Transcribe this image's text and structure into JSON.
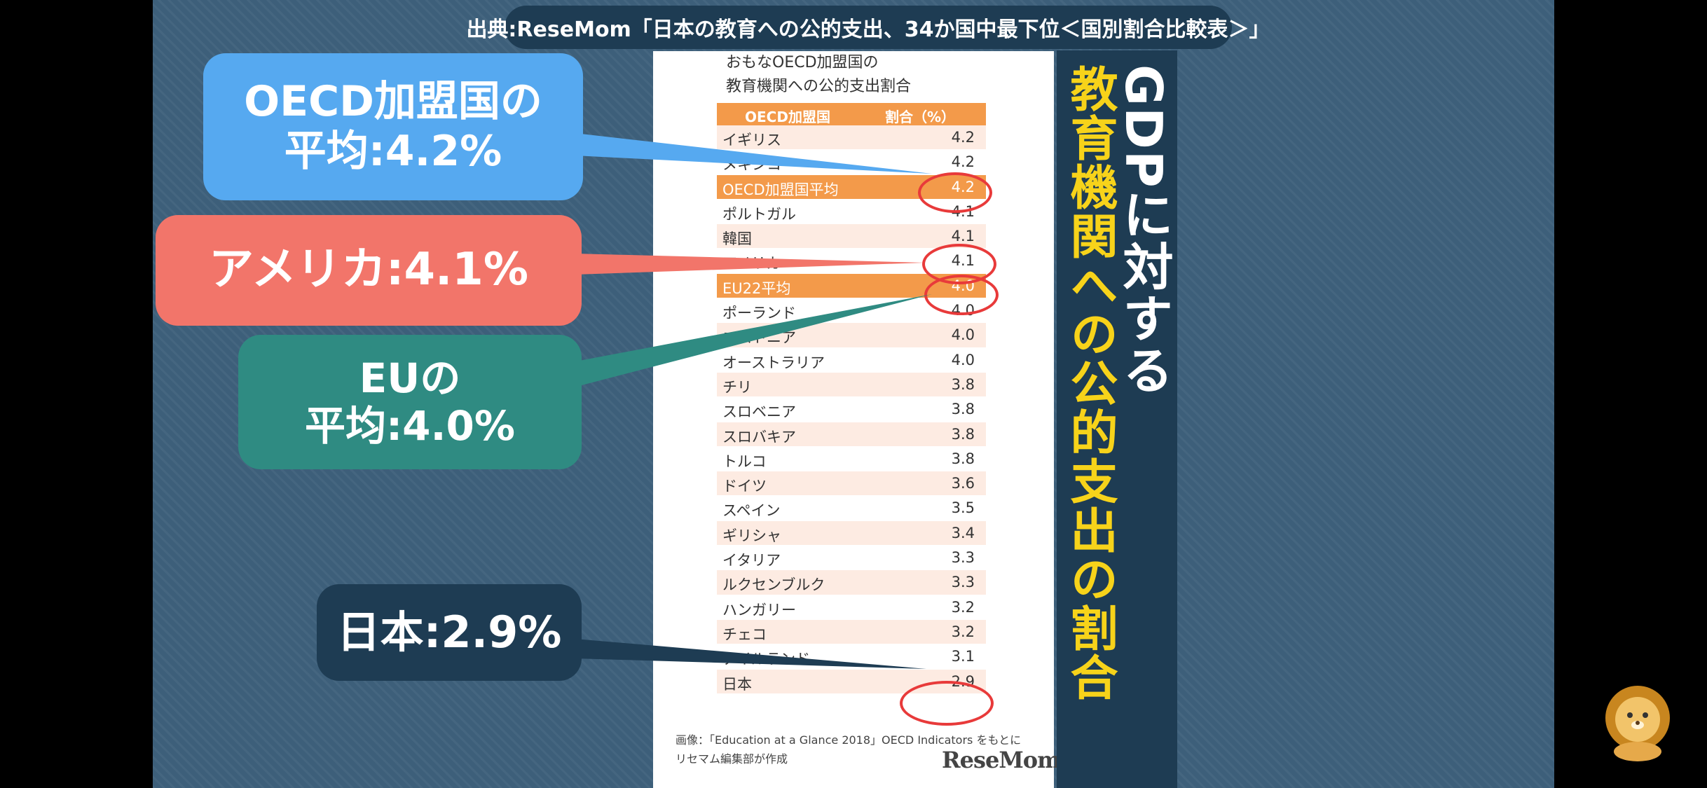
{
  "source_label": "出典:ReseMom「日本の教育への公的支出、34か国中最下位＜国別割合比較表＞」",
  "table": {
    "title_line1": "おもなOECD加盟国の",
    "title_line2": "教育機関への公的支出割合",
    "header_country": "OECD加盟国",
    "header_value": "割合（%）",
    "rows": [
      {
        "country": "イギリス",
        "value": "4.2"
      },
      {
        "country": "メキシコ",
        "value": "4.2"
      },
      {
        "country": "OECD加盟国平均",
        "value": "4.2",
        "highlight": true
      },
      {
        "country": "ポルトガル",
        "value": "4.1"
      },
      {
        "country": "韓国",
        "value": "4.1"
      },
      {
        "country": "アメリカ",
        "value": "4.1"
      },
      {
        "country": "EU22平均",
        "value": "4.0",
        "highlight": true
      },
      {
        "country": "ポーランド",
        "value": "4.0"
      },
      {
        "country": "エストニア",
        "value": "4.0"
      },
      {
        "country": "オーストラリア",
        "value": "4.0"
      },
      {
        "country": "チリ",
        "value": "3.8"
      },
      {
        "country": "スロベニア",
        "value": "3.8"
      },
      {
        "country": "スロバキア",
        "value": "3.8"
      },
      {
        "country": "トルコ",
        "value": "3.8"
      },
      {
        "country": "ドイツ",
        "value": "3.6"
      },
      {
        "country": "スペイン",
        "value": "3.5"
      },
      {
        "country": "ギリシャ",
        "value": "3.4"
      },
      {
        "country": "イタリア",
        "value": "3.3"
      },
      {
        "country": "ルクセンブルク",
        "value": "3.3"
      },
      {
        "country": "ハンガリー",
        "value": "3.2"
      },
      {
        "country": "チェコ",
        "value": "3.2"
      },
      {
        "country": "アイルランド",
        "value": "3.1"
      },
      {
        "country": "日本",
        "value": "2.9"
      }
    ],
    "caption_line1": "画像：「Education at a Glance 2018」OECD Indicators をもとに",
    "caption_line2": "リセマム編集部が作成",
    "logo": "ReseMom"
  },
  "vertical_title": {
    "col1": "GDPに対する",
    "col2": "教育機関への公的支出の割合"
  },
  "callouts": {
    "oecd_line1": "OECD加盟国の",
    "oecd_line2": "平均:4.2%",
    "us": "アメリカ:4.1%",
    "eu_line1": "EUの",
    "eu_line2": "平均:4.0%",
    "japan": "日本:2.9%"
  },
  "colors": {
    "background": "#3d5f7a",
    "navy": "#1e3c53",
    "orange": "#f39a4a",
    "blue_callout": "#56a9f0",
    "red_callout": "#f2756a",
    "teal_callout": "#2f8b82",
    "yellow_title": "#f7d31a",
    "circle_red": "#e83a3a"
  }
}
